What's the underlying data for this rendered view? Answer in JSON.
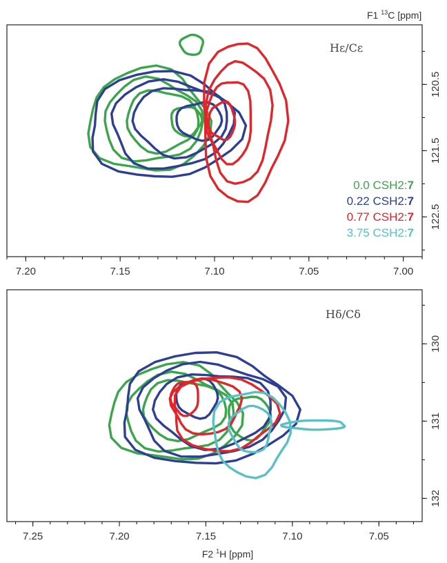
{
  "chart_data": [
    {
      "type": "contour",
      "name": "panel-top",
      "annotation": "Hε/Cε",
      "x_axis": {
        "label": "",
        "range": [
          7.21,
          6.99
        ],
        "ticks": [
          "7.20",
          "7.15",
          "7.10",
          "7.05",
          "7.00"
        ]
      },
      "y_axis": {
        "label": "F1 ¹³C [ppm]",
        "range": [
          119.6,
          123.1
        ],
        "ticks": [
          "120.5",
          "121.5",
          "122.5"
        ],
        "side": "right"
      },
      "legend": [
        {
          "conc": "0.0",
          "text": " CSH2:",
          "bold": "7",
          "color": "#3aa54a"
        },
        {
          "conc": "0.22",
          "text": " CSH2:",
          "bold": "7",
          "color": "#2e3f93"
        },
        {
          "conc": "0.77",
          "text": " CSH2:",
          "bold": "7",
          "color": "#e0262a"
        },
        {
          "conc": "3.75",
          "text": " CSH2:",
          "bold": "7",
          "color": "#59c0c6"
        }
      ],
      "series": [
        {
          "name": "0.0 CSH2:7",
          "color": "#3aa54a",
          "contours": [
            {
              "center": [
                7.135,
                121.05
              ],
              "rx": 0.032,
              "ry": 0.78
            },
            {
              "center": [
                7.133,
                121.05
              ],
              "rx": 0.026,
              "ry": 0.62
            },
            {
              "center": [
                7.128,
                121.05
              ],
              "rx": 0.019,
              "ry": 0.46
            },
            {
              "center": [
                7.115,
                121.05
              ],
              "rx": 0.008,
              "ry": 0.22
            },
            {
              "center": [
                7.112,
                119.9
              ],
              "rx": 0.006,
              "ry": 0.15
            }
          ]
        },
        {
          "name": "0.22 CSH2:7",
          "color": "#2e3f93",
          "contours": [
            {
              "center": [
                7.127,
                121.12
              ],
              "rx": 0.04,
              "ry": 0.8
            },
            {
              "center": [
                7.123,
                121.1
              ],
              "rx": 0.032,
              "ry": 0.66
            },
            {
              "center": [
                7.118,
                121.05
              ],
              "rx": 0.025,
              "ry": 0.52
            },
            {
              "center": [
                7.108,
                121.05
              ],
              "rx": 0.012,
              "ry": 0.28
            }
          ]
        },
        {
          "name": "0.77 CSH2:7",
          "color": "#e0262a",
          "contours": [
            {
              "center": [
                7.085,
                121.05
              ],
              "rx": 0.022,
              "ry": 1.2
            },
            {
              "center": [
                7.087,
                121.05
              ],
              "rx": 0.017,
              "ry": 0.92
            },
            {
              "center": [
                7.092,
                121.05
              ],
              "rx": 0.012,
              "ry": 0.62
            },
            {
              "center": [
                7.096,
                121.05
              ],
              "rx": 0.007,
              "ry": 0.28
            }
          ]
        }
      ]
    },
    {
      "type": "contour",
      "name": "panel-bottom",
      "annotation": "Hδ/Cδ",
      "x_axis": {
        "label": "F2 ¹H [ppm]",
        "range": [
          7.265,
          7.025
        ],
        "ticks": [
          "7.25",
          "7.20",
          "7.15",
          "7.10",
          "7.05"
        ]
      },
      "y_axis": {
        "label": "",
        "range": [
          129.3,
          132.3
        ],
        "ticks": [
          "130",
          "131",
          "132"
        ],
        "side": "right"
      },
      "series": [
        {
          "name": "0.0 CSH2:7",
          "color": "#3aa54a",
          "contours": [
            {
              "center": [
                7.168,
                130.9
              ],
              "rx": 0.038,
              "ry": 0.62
            },
            {
              "center": [
                7.166,
                130.9
              ],
              "rx": 0.031,
              "ry": 0.5
            },
            {
              "center": [
                7.163,
                130.85
              ],
              "rx": 0.024,
              "ry": 0.38
            },
            {
              "center": [
                7.125,
                130.95
              ],
              "rx": 0.012,
              "ry": 0.28
            }
          ]
        },
        {
          "name": "0.22 CSH2:7",
          "color": "#2e3f93",
          "contours": [
            {
              "center": [
                7.15,
                130.85
              ],
              "rx": 0.05,
              "ry": 0.72
            },
            {
              "center": [
                7.148,
                130.85
              ],
              "rx": 0.042,
              "ry": 0.6
            },
            {
              "center": [
                7.146,
                130.85
              ],
              "rx": 0.034,
              "ry": 0.48
            },
            {
              "center": [
                7.155,
                130.7
              ],
              "rx": 0.012,
              "ry": 0.25
            }
          ]
        },
        {
          "name": "0.77 CSH2:7",
          "color": "#e0262a",
          "contours": [
            {
              "center": [
                7.14,
                130.9
              ],
              "rx": 0.03,
              "ry": 0.48
            },
            {
              "center": [
                7.15,
                130.8
              ],
              "rx": 0.02,
              "ry": 0.36
            },
            {
              "center": [
                7.162,
                130.7
              ],
              "rx": 0.008,
              "ry": 0.22
            }
          ]
        },
        {
          "name": "3.75 CSH2:7",
          "color": "#59c0c6",
          "contours": [
            {
              "center": [
                7.124,
                131.15
              ],
              "rx": 0.022,
              "ry": 0.55
            },
            {
              "center": [
                7.124,
                131.1
              ],
              "rx": 0.012,
              "ry": 0.3
            },
            {
              "center": [
                7.087,
                131.05
              ],
              "rx": 0.018,
              "ry": 0.06
            }
          ]
        }
      ]
    }
  ]
}
